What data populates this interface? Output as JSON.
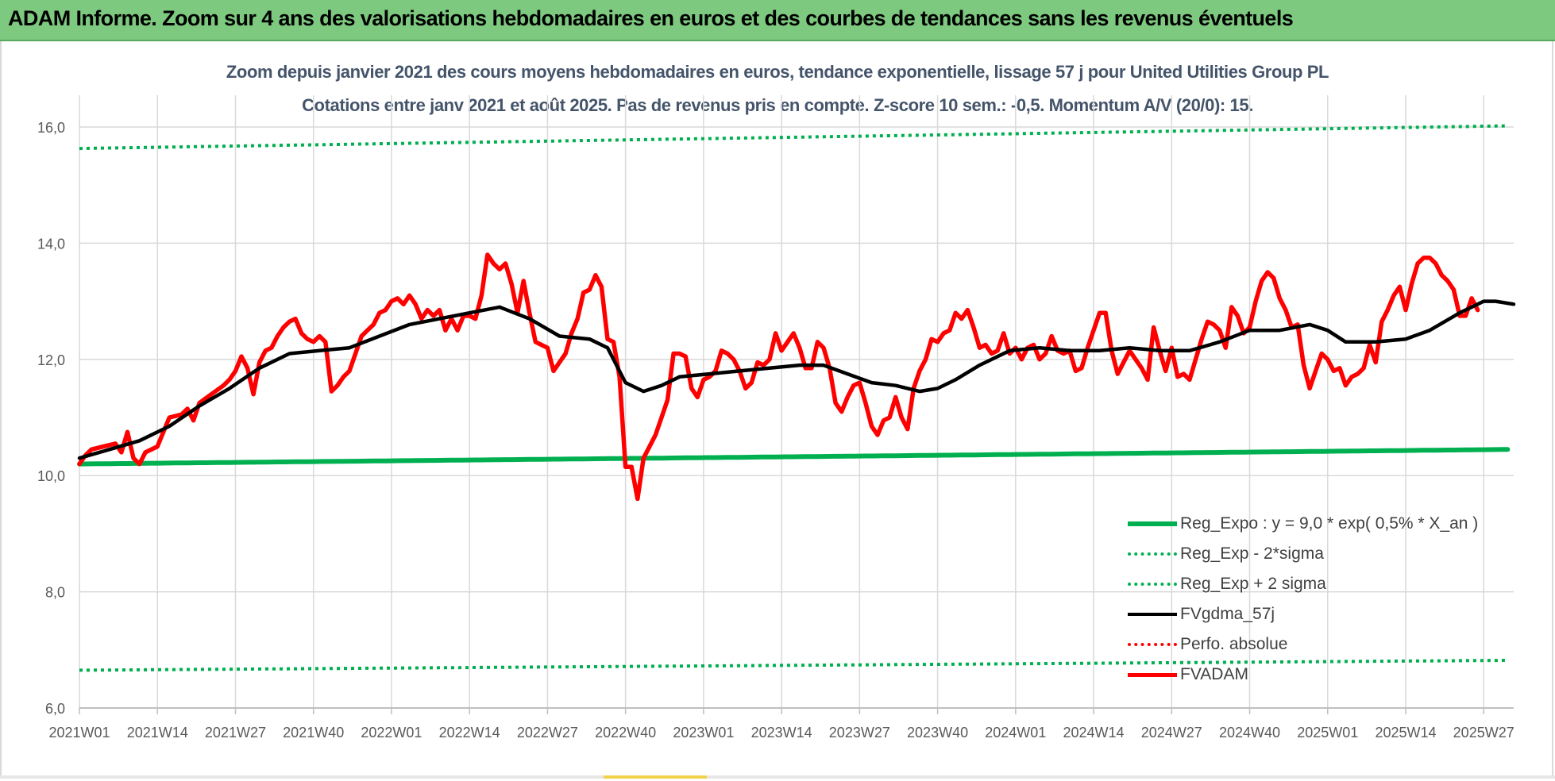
{
  "banner": {
    "title": "ADAM Informe. Zoom sur 4 ans des valorisations hebdomadaires en euros et des courbes de tendances sans les revenus éventuels"
  },
  "chart_data": {
    "type": "line",
    "title": "Zoom depuis janvier 2021 des cours moyens hebdomadaires en euros, tendance exponentielle, lissage 57 j pour United Utilities Group PL",
    "subtitle": "Cotations entre janv 2021 et août 2025.  Pas de revenus pris en compte. Z-score 10 sem.: -0,5. Momentum A/V (20/0): 15.",
    "xlabel": "",
    "ylabel": "",
    "ylim": [
      6,
      16
    ],
    "yticks": [
      "6,0",
      "8,0",
      "10,0",
      "12,0",
      "14,0",
      "16,0"
    ],
    "yticks_values": [
      6,
      8,
      10,
      12,
      14,
      16
    ],
    "xticks": [
      "2021W01",
      "2021W14",
      "2021W27",
      "2021W40",
      "2022W01",
      "2022W14",
      "2022W27",
      "2022W40",
      "2023W01",
      "2023W14",
      "2023W27",
      "2023W40",
      "2024W01",
      "2024W14",
      "2024W27",
      "2024W40",
      "2025W01",
      "2025W14",
      "2025W27"
    ],
    "xticks_index": [
      0,
      13,
      26,
      39,
      52,
      65,
      78,
      91,
      104,
      117,
      130,
      143,
      156,
      169,
      182,
      195,
      208,
      221,
      234
    ],
    "n_weeks": 239,
    "grid": true,
    "legend_position": "bottom-right",
    "series": [
      {
        "name": "Reg_Expo : y = 9,0 * exp( 0,5% *  X_an )",
        "color": "#00b050",
        "style": "solid",
        "y_start": 10.2,
        "y_end": 10.45
      },
      {
        "name": "Reg_Exp - 2*sigma",
        "color": "#00b050",
        "style": "dotted",
        "y_start": 6.65,
        "y_end": 6.82
      },
      {
        "name": "Reg_Exp + 2 sigma",
        "color": "#00b050",
        "style": "dotted",
        "y_start": 15.63,
        "y_end": 16.02
      },
      {
        "name": "FVgdma_57j",
        "color": "#000000",
        "style": "solid",
        "points": [
          [
            0,
            10.3
          ],
          [
            5,
            10.45
          ],
          [
            10,
            10.6
          ],
          [
            15,
            10.85
          ],
          [
            20,
            11.2
          ],
          [
            25,
            11.5
          ],
          [
            30,
            11.85
          ],
          [
            35,
            12.1
          ],
          [
            40,
            12.15
          ],
          [
            45,
            12.2
          ],
          [
            50,
            12.4
          ],
          [
            55,
            12.6
          ],
          [
            60,
            12.7
          ],
          [
            65,
            12.8
          ],
          [
            70,
            12.9
          ],
          [
            75,
            12.7
          ],
          [
            80,
            12.4
          ],
          [
            85,
            12.35
          ],
          [
            88,
            12.2
          ],
          [
            91,
            11.6
          ],
          [
            94,
            11.45
          ],
          [
            97,
            11.55
          ],
          [
            100,
            11.7
          ],
          [
            105,
            11.75
          ],
          [
            110,
            11.8
          ],
          [
            115,
            11.85
          ],
          [
            120,
            11.9
          ],
          [
            124,
            11.9
          ],
          [
            128,
            11.75
          ],
          [
            132,
            11.6
          ],
          [
            136,
            11.55
          ],
          [
            140,
            11.45
          ],
          [
            143,
            11.5
          ],
          [
            146,
            11.65
          ],
          [
            150,
            11.9
          ],
          [
            155,
            12.15
          ],
          [
            160,
            12.2
          ],
          [
            165,
            12.15
          ],
          [
            170,
            12.15
          ],
          [
            175,
            12.2
          ],
          [
            180,
            12.15
          ],
          [
            185,
            12.15
          ],
          [
            190,
            12.3
          ],
          [
            195,
            12.5
          ],
          [
            200,
            12.5
          ],
          [
            205,
            12.6
          ],
          [
            208,
            12.5
          ],
          [
            211,
            12.3
          ],
          [
            216,
            12.3
          ],
          [
            221,
            12.35
          ],
          [
            225,
            12.5
          ],
          [
            230,
            12.8
          ],
          [
            234,
            13.0
          ],
          [
            236,
            13.0
          ],
          [
            239,
            12.95
          ]
        ]
      },
      {
        "name": "Perfo. absolue",
        "color": "#ff0000",
        "style": "dotted",
        "points": []
      },
      {
        "name": "FVADAM",
        "color": "#ff0000",
        "style": "solid",
        "points": [
          [
            0,
            10.2
          ],
          [
            1,
            10.35
          ],
          [
            2,
            10.45
          ],
          [
            4,
            10.5
          ],
          [
            6,
            10.55
          ],
          [
            7,
            10.4
          ],
          [
            8,
            10.75
          ],
          [
            9,
            10.3
          ],
          [
            10,
            10.2
          ],
          [
            11,
            10.4
          ],
          [
            13,
            10.5
          ],
          [
            15,
            11.0
          ],
          [
            17,
            11.05
          ],
          [
            18,
            11.15
          ],
          [
            19,
            10.95
          ],
          [
            20,
            11.25
          ],
          [
            22,
            11.4
          ],
          [
            24,
            11.55
          ],
          [
            25,
            11.65
          ],
          [
            26,
            11.8
          ],
          [
            27,
            12.05
          ],
          [
            28,
            11.85
          ],
          [
            29,
            11.4
          ],
          [
            30,
            11.95
          ],
          [
            31,
            12.15
          ],
          [
            32,
            12.2
          ],
          [
            33,
            12.4
          ],
          [
            34,
            12.55
          ],
          [
            35,
            12.65
          ],
          [
            36,
            12.7
          ],
          [
            37,
            12.45
          ],
          [
            38,
            12.35
          ],
          [
            39,
            12.3
          ],
          [
            40,
            12.4
          ],
          [
            41,
            12.3
          ],
          [
            42,
            11.45
          ],
          [
            43,
            11.55
          ],
          [
            44,
            11.7
          ],
          [
            45,
            11.8
          ],
          [
            46,
            12.1
          ],
          [
            47,
            12.4
          ],
          [
            48,
            12.5
          ],
          [
            49,
            12.6
          ],
          [
            50,
            12.8
          ],
          [
            51,
            12.85
          ],
          [
            52,
            13.0
          ],
          [
            53,
            13.05
          ],
          [
            54,
            12.95
          ],
          [
            55,
            13.1
          ],
          [
            56,
            12.95
          ],
          [
            57,
            12.7
          ],
          [
            58,
            12.85
          ],
          [
            59,
            12.75
          ],
          [
            60,
            12.85
          ],
          [
            61,
            12.5
          ],
          [
            62,
            12.7
          ],
          [
            63,
            12.5
          ],
          [
            64,
            12.75
          ],
          [
            65,
            12.75
          ],
          [
            66,
            12.7
          ],
          [
            67,
            13.1
          ],
          [
            68,
            13.8
          ],
          [
            69,
            13.65
          ],
          [
            70,
            13.55
          ],
          [
            71,
            13.65
          ],
          [
            72,
            13.3
          ],
          [
            73,
            12.8
          ],
          [
            74,
            13.35
          ],
          [
            75,
            12.8
          ],
          [
            76,
            12.3
          ],
          [
            77,
            12.25
          ],
          [
            78,
            12.2
          ],
          [
            79,
            11.8
          ],
          [
            80,
            11.95
          ],
          [
            81,
            12.1
          ],
          [
            82,
            12.45
          ],
          [
            83,
            12.7
          ],
          [
            84,
            13.15
          ],
          [
            85,
            13.2
          ],
          [
            86,
            13.45
          ],
          [
            87,
            13.25
          ],
          [
            88,
            12.35
          ],
          [
            89,
            12.3
          ],
          [
            90,
            11.7
          ],
          [
            91,
            10.15
          ],
          [
            92,
            10.15
          ],
          [
            93,
            9.6
          ],
          [
            94,
            10.3
          ],
          [
            96,
            10.7
          ],
          [
            97,
            11.0
          ],
          [
            98,
            11.3
          ],
          [
            99,
            12.1
          ],
          [
            100,
            12.1
          ],
          [
            101,
            12.05
          ],
          [
            102,
            11.5
          ],
          [
            103,
            11.35
          ],
          [
            104,
            11.65
          ],
          [
            105,
            11.7
          ],
          [
            106,
            11.8
          ],
          [
            107,
            12.15
          ],
          [
            108,
            12.1
          ],
          [
            109,
            12.0
          ],
          [
            110,
            11.8
          ],
          [
            111,
            11.5
          ],
          [
            112,
            11.6
          ],
          [
            113,
            11.95
          ],
          [
            114,
            11.9
          ],
          [
            115,
            12.0
          ],
          [
            116,
            12.45
          ],
          [
            117,
            12.15
          ],
          [
            118,
            12.3
          ],
          [
            119,
            12.45
          ],
          [
            120,
            12.2
          ],
          [
            121,
            11.85
          ],
          [
            122,
            11.85
          ],
          [
            123,
            12.3
          ],
          [
            124,
            12.2
          ],
          [
            125,
            11.85
          ],
          [
            126,
            11.25
          ],
          [
            127,
            11.1
          ],
          [
            128,
            11.35
          ],
          [
            129,
            11.55
          ],
          [
            130,
            11.6
          ],
          [
            131,
            11.25
          ],
          [
            132,
            10.85
          ],
          [
            133,
            10.7
          ],
          [
            134,
            10.95
          ],
          [
            135,
            11.0
          ],
          [
            136,
            11.35
          ],
          [
            137,
            11.0
          ],
          [
            138,
            10.8
          ],
          [
            139,
            11.5
          ],
          [
            140,
            11.8
          ],
          [
            141,
            12.0
          ],
          [
            142,
            12.35
          ],
          [
            143,
            12.3
          ],
          [
            144,
            12.45
          ],
          [
            145,
            12.5
          ],
          [
            146,
            12.8
          ],
          [
            147,
            12.7
          ],
          [
            148,
            12.85
          ],
          [
            149,
            12.55
          ],
          [
            150,
            12.2
          ],
          [
            151,
            12.25
          ],
          [
            152,
            12.1
          ],
          [
            153,
            12.15
          ],
          [
            154,
            12.45
          ],
          [
            155,
            12.1
          ],
          [
            156,
            12.2
          ],
          [
            157,
            12.0
          ],
          [
            158,
            12.2
          ],
          [
            159,
            12.25
          ],
          [
            160,
            12.0
          ],
          [
            161,
            12.1
          ],
          [
            162,
            12.4
          ],
          [
            163,
            12.15
          ],
          [
            164,
            12.1
          ],
          [
            165,
            12.15
          ],
          [
            166,
            11.8
          ],
          [
            167,
            11.85
          ],
          [
            168,
            12.2
          ],
          [
            169,
            12.5
          ],
          [
            170,
            12.8
          ],
          [
            171,
            12.8
          ],
          [
            172,
            12.15
          ],
          [
            173,
            11.75
          ],
          [
            174,
            11.95
          ],
          [
            175,
            12.15
          ],
          [
            176,
            12.0
          ],
          [
            177,
            11.85
          ],
          [
            178,
            11.65
          ],
          [
            179,
            12.55
          ],
          [
            180,
            12.15
          ],
          [
            181,
            11.8
          ],
          [
            182,
            12.2
          ],
          [
            183,
            11.7
          ],
          [
            184,
            11.75
          ],
          [
            185,
            11.65
          ],
          [
            186,
            12.0
          ],
          [
            187,
            12.35
          ],
          [
            188,
            12.65
          ],
          [
            189,
            12.6
          ],
          [
            190,
            12.5
          ],
          [
            191,
            12.2
          ],
          [
            192,
            12.9
          ],
          [
            193,
            12.75
          ],
          [
            194,
            12.45
          ],
          [
            195,
            12.55
          ],
          [
            196,
            13.0
          ],
          [
            197,
            13.35
          ],
          [
            198,
            13.5
          ],
          [
            199,
            13.4
          ],
          [
            200,
            13.05
          ],
          [
            201,
            12.85
          ],
          [
            202,
            12.55
          ],
          [
            203,
            12.6
          ],
          [
            204,
            11.9
          ],
          [
            205,
            11.5
          ],
          [
            206,
            11.8
          ],
          [
            207,
            12.1
          ],
          [
            208,
            12.0
          ],
          [
            209,
            11.8
          ],
          [
            210,
            11.85
          ],
          [
            211,
            11.55
          ],
          [
            212,
            11.7
          ],
          [
            213,
            11.75
          ],
          [
            214,
            11.85
          ],
          [
            215,
            12.25
          ],
          [
            216,
            11.95
          ],
          [
            217,
            12.65
          ],
          [
            218,
            12.85
          ],
          [
            219,
            13.1
          ],
          [
            220,
            13.25
          ],
          [
            221,
            12.85
          ],
          [
            222,
            13.3
          ],
          [
            223,
            13.65
          ],
          [
            224,
            13.75
          ],
          [
            225,
            13.75
          ],
          [
            226,
            13.65
          ],
          [
            227,
            13.45
          ],
          [
            228,
            13.35
          ],
          [
            229,
            13.2
          ],
          [
            230,
            12.75
          ],
          [
            231,
            12.75
          ],
          [
            232,
            13.05
          ],
          [
            233,
            12.85
          ]
        ]
      }
    ]
  }
}
